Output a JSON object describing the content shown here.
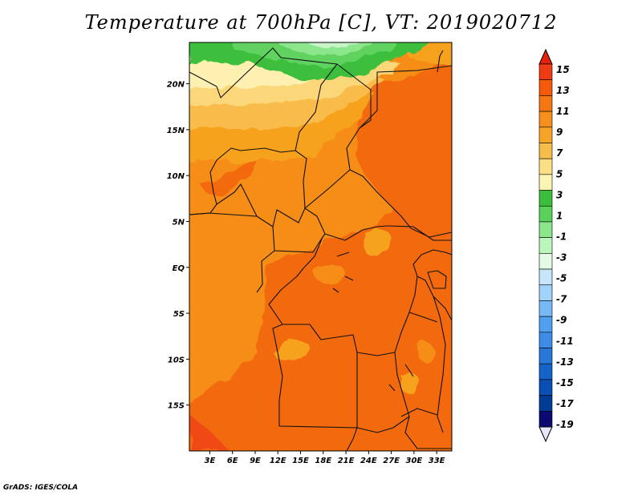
{
  "title": "Temperature at 700hPa [C], VT: 2019020712",
  "credit": "GrADS: IGES/COLA",
  "lat_axis": {
    "labels": [
      "20N",
      "15N",
      "10N",
      "5N",
      "EQ",
      "5S",
      "10S",
      "15S"
    ],
    "values": [
      20,
      15,
      10,
      5,
      0,
      -5,
      -10,
      -15
    ],
    "range": [
      -20,
      24.5
    ]
  },
  "lon_axis": {
    "labels": [
      "3E",
      "6E",
      "9E",
      "12E",
      "15E",
      "18E",
      "21E",
      "24E",
      "27E",
      "30E",
      "33E"
    ],
    "values": [
      3,
      6,
      9,
      12,
      15,
      18,
      21,
      24,
      27,
      30,
      33
    ],
    "range": [
      0.3,
      35
    ]
  },
  "colorbar": {
    "labels": [
      "15",
      "13",
      "11",
      "9",
      "7",
      "5",
      "3",
      "1",
      "-1",
      "-3",
      "-5",
      "-7",
      "-9",
      "-11",
      "-13",
      "-15",
      "-17",
      "-19"
    ],
    "colors": [
      "#f03c14",
      "#f55a0a",
      "#f57714",
      "#f5901e",
      "#f5a628",
      "#f5be4b",
      "#fae082",
      "#fcf5b4",
      "#3cbe3c",
      "#5ad25a",
      "#8ce68c",
      "#bcf5bc",
      "#e4fae4",
      "#c8e6fa",
      "#a0d2fa",
      "#78b9f5",
      "#50a0f0",
      "#3c8ce6",
      "#2878d7",
      "#1464c8",
      "#0a50b4",
      "#003c96",
      "#0a0a70"
    ],
    "top_color": "#e61e0a",
    "bottom_color": "#e6e6fa"
  },
  "field_colors": {
    "t12": "#f26a10",
    "t10": "#f58d14",
    "t8": "#f7a21e",
    "t6": "#f9bc4c",
    "t4": "#fbd77a",
    "t2": "#fdf0b0",
    "t0": "#3cbe3c",
    "tm2": "#5fd25f",
    "tm4": "#8ce68c",
    "tm6": "#c8f5c8",
    "tm8": "#e4fae4"
  }
}
